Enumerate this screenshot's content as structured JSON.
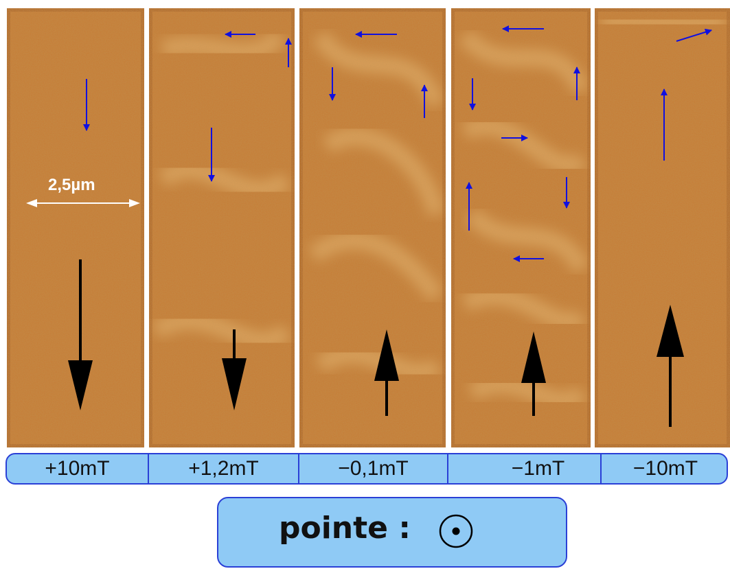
{
  "figure": {
    "panels": [
      {
        "field": "+10mT"
      },
      {
        "field": "+1,2mT"
      },
      {
        "field": "−0,1mT"
      },
      {
        "field": "−1mT"
      },
      {
        "field": "−10mT"
      }
    ],
    "scale_bar": {
      "label": "2,5µm"
    },
    "tip": {
      "label": "pointe :",
      "symbol": "out-of-plane-dot-icon"
    },
    "colors": {
      "texture_base": "#c57a33",
      "texture_light": "#f2c47f",
      "texture_dark": "#8e4b1a",
      "small_arrow": "#1010e0",
      "big_arrow": "#000000",
      "label_box_fill": "#8fcaf5",
      "label_box_border": "#2a3fd6"
    }
  }
}
